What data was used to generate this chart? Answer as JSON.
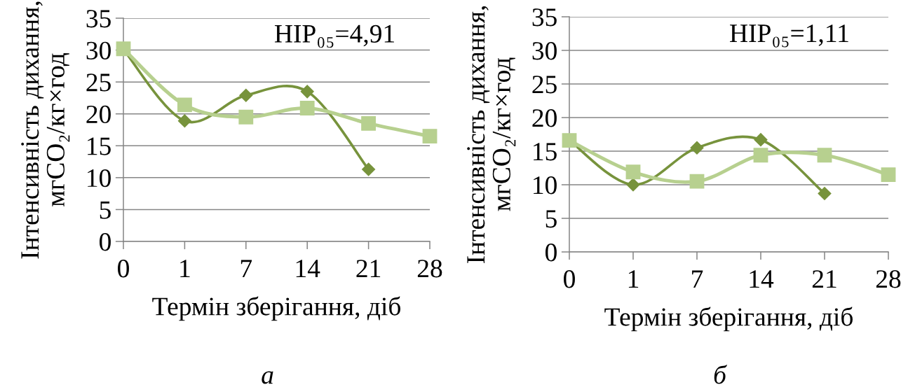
{
  "chart_data": [
    {
      "type": "line",
      "ylabel": "Інтенсивність дихання,\nмгCO₂/кг×год",
      "xlabel": "Термін зберігання, діб",
      "categories": [
        "0",
        "1",
        "7",
        "14",
        "21",
        "28"
      ],
      "series": [
        {
          "color": "#77933c",
          "marker": "diamond",
          "values": [
            30.1,
            18.9,
            22.9,
            23.5,
            11.3,
            null
          ]
        },
        {
          "color": "#b7d08f",
          "marker": "square",
          "values": [
            30.2,
            21.4,
            19.5,
            20.9,
            18.5,
            16.5
          ]
        }
      ],
      "ylim": [
        0,
        35
      ],
      "yticks": [
        0,
        5,
        10,
        15,
        20,
        25,
        30,
        35
      ],
      "grid": "y",
      "annotations": [
        "НІР₀₅=4,91",
        "а"
      ]
    },
    {
      "type": "line",
      "ylabel": "Інтенсивність дихання,\nмгCO₂/кг×год",
      "xlabel": "Термін зберігання, діб",
      "categories": [
        "0",
        "1",
        "7",
        "14",
        "21",
        "28"
      ],
      "series": [
        {
          "color": "#77933c",
          "marker": "diamond",
          "values": [
            16.6,
            10.0,
            15.5,
            16.7,
            8.7,
            null
          ]
        },
        {
          "color": "#b7d08f",
          "marker": "square",
          "values": [
            16.6,
            11.9,
            10.5,
            14.4,
            14.4,
            11.5
          ]
        }
      ],
      "ylim": [
        0,
        35
      ],
      "yticks": [
        0,
        5,
        10,
        15,
        20,
        25,
        30,
        35
      ],
      "grid": "y",
      "annotations": [
        "НІР₀₅=1,11",
        "б"
      ]
    }
  ]
}
